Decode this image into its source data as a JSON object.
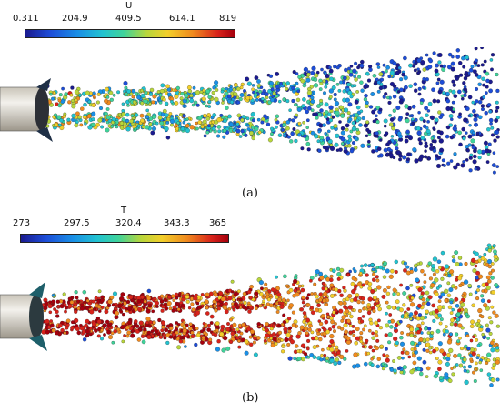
{
  "panels": [
    {
      "caption": "(a)",
      "colorbar": {
        "title": "U",
        "ticks": [
          "0.311",
          "204.9",
          "409.5",
          "614.1",
          "819"
        ]
      }
    },
    {
      "caption": "(b)",
      "colorbar": {
        "title": "T",
        "ticks": [
          "273",
          "297.5",
          "320.4",
          "343.3",
          "365"
        ]
      }
    }
  ]
}
